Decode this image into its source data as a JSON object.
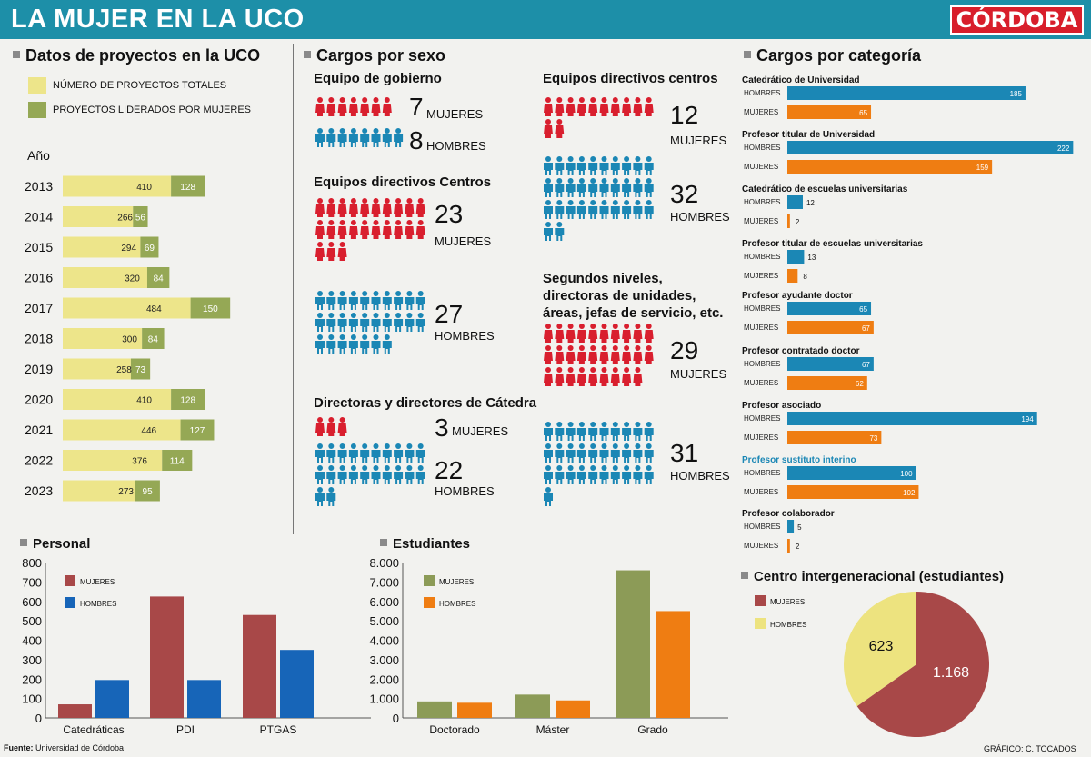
{
  "header": {
    "title": "LA MUJER EN LA UCO",
    "brand": "CÓRDOBA"
  },
  "colors": {
    "header": "#1d8fa8",
    "yellow": "#ede58a",
    "olive": "#95a855",
    "red": "#d91f2e",
    "blue": "#1b87b5",
    "orange": "#ef7d12",
    "maroon": "#a84848",
    "darkblue": "#1765b8",
    "paleyellow": "#ede37f",
    "sage": "#8c9b57"
  },
  "footer": {
    "source_label": "Fuente:",
    "source_value": " Universidad de Córdoba",
    "credit": "GRÁFICO: C. TOCADOS"
  },
  "icons": [
    "woman-icon",
    "man-icon",
    "section-square-icon"
  ],
  "chart_data": [
    {
      "id": "proyectos",
      "type": "bar",
      "orientation": "horizontal",
      "stacked": true,
      "title": "Datos de proyectos en la UCO",
      "axis_label": "Año",
      "categories": [
        "2013",
        "2014",
        "2015",
        "2016",
        "2017",
        "2018",
        "2019",
        "2020",
        "2021",
        "2022",
        "2023"
      ],
      "series": [
        {
          "name": "NÚMERO DE PROYECTOS TOTALES",
          "values": [
            410,
            266,
            294,
            320,
            484,
            300,
            258,
            410,
            446,
            376,
            273
          ]
        },
        {
          "name": "PROYECTOS LIDERADOS POR MUJERES",
          "values": [
            128,
            56,
            69,
            84,
            150,
            84,
            73,
            128,
            127,
            114,
            95
          ]
        }
      ]
    },
    {
      "id": "sexo",
      "type": "pictogram",
      "title": "Cargos por sexo",
      "groups": [
        {
          "name": "Equipo de gobierno",
          "women": 7,
          "men": 8
        },
        {
          "name": "Equipos directivos Centros",
          "women": 23,
          "men": 27
        },
        {
          "name": "Directoras y directores de Cátedra",
          "women": 3,
          "men": 22
        },
        {
          "name": "Equipos directivos centros",
          "women": 12,
          "men": 32
        },
        {
          "name": "Segundos niveles, directoras de unidades, áreas, jefas de servicio, etc.",
          "women": 29,
          "men": 31
        }
      ],
      "women_label": "MUJERES",
      "men_label": "HOMBRES"
    },
    {
      "id": "categoria",
      "type": "bar",
      "orientation": "horizontal",
      "title": "Cargos por categoría",
      "series_names": [
        "HOMBRES",
        "MUJERES"
      ],
      "categories": [
        {
          "name": "Catedrático de Universidad",
          "men": 185,
          "women": 65
        },
        {
          "name": "Profesor titular de Universidad",
          "men": 222,
          "women": 159
        },
        {
          "name": "Catedrático de escuelas universitarias",
          "men": 12,
          "women": 2
        },
        {
          "name": "Profesor titular de escuelas universitarias",
          "men": 13,
          "women": 8
        },
        {
          "name": "Profesor ayudante doctor",
          "men": 65,
          "women": 67
        },
        {
          "name": "Profesor contratado doctor",
          "men": 67,
          "women": 62
        },
        {
          "name": "Profesor asociado",
          "men": 194,
          "women": 73
        },
        {
          "name": "Profesor sustituto interino",
          "men": 100,
          "women": 102
        },
        {
          "name": "Profesor colaborador",
          "men": 5,
          "women": 2
        }
      ]
    },
    {
      "id": "personal",
      "type": "bar",
      "title": "Personal",
      "categories": [
        "Catedráticas",
        "PDI",
        "PTGAS"
      ],
      "series": [
        {
          "name": "MUJERES",
          "values": [
            70,
            625,
            530
          ]
        },
        {
          "name": "HOMBRES",
          "values": [
            195,
            195,
            350
          ]
        }
      ],
      "ylim": [
        0,
        800
      ],
      "yticks": [
        "0",
        "100",
        "200",
        "300",
        "400",
        "500",
        "600",
        "700",
        "800"
      ]
    },
    {
      "id": "estudiantes",
      "type": "bar",
      "title": "Estudiantes",
      "categories": [
        "Doctorado",
        "Máster",
        "Grado"
      ],
      "series": [
        {
          "name": "MUJERES",
          "values": [
            850,
            1200,
            7600
          ]
        },
        {
          "name": "HOMBRES",
          "values": [
            780,
            900,
            5500
          ]
        }
      ],
      "ylim": [
        0,
        8000
      ],
      "yticks": [
        "0",
        "1.000",
        "2.000",
        "3.000",
        "4.000",
        "5.000",
        "6.000",
        "7.000",
        "8.000"
      ]
    },
    {
      "id": "intergeneracional",
      "type": "pie",
      "title": "Centro intergeneracional (estudiantes)",
      "slices": [
        {
          "name": "MUJERES",
          "value": 1168,
          "label": "1.168"
        },
        {
          "name": "HOMBRES",
          "value": 623,
          "label": "623"
        }
      ]
    }
  ]
}
